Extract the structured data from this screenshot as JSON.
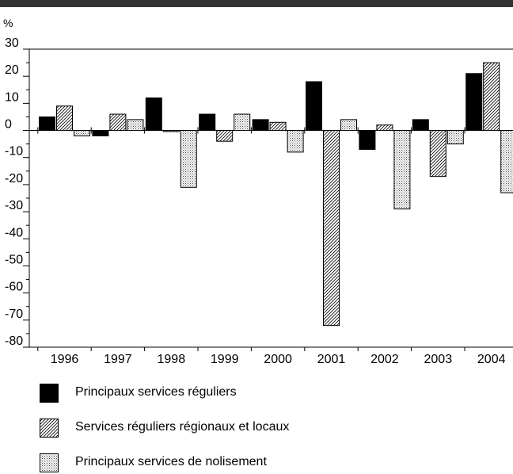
{
  "chart_data": {
    "type": "bar",
    "ylabel": "%",
    "ylim": [
      -80,
      30
    ],
    "yticks": [
      30,
      20,
      10,
      0,
      -10,
      -20,
      -30,
      -40,
      -50,
      -60,
      -70,
      -80
    ],
    "categories": [
      "1996",
      "1997",
      "1998",
      "1999",
      "2000",
      "2001",
      "2002",
      "2003",
      "2004"
    ],
    "series": [
      {
        "name": "Principaux services réguliers",
        "fill": "solid",
        "color": "#000000",
        "values": [
          5,
          -2,
          12,
          6,
          4,
          18,
          -7,
          4,
          21
        ]
      },
      {
        "name": "Services réguliers régionaux et locaux",
        "fill": "diagonal-hatch",
        "color": "#000000",
        "values": [
          9,
          6,
          0,
          -4,
          3,
          -72,
          2,
          -17,
          25
        ]
      },
      {
        "name": "Principaux services de nolisement",
        "fill": "dotted",
        "color": "#000000",
        "values": [
          -2,
          4,
          -21,
          6,
          -8,
          4,
          -29,
          -5,
          -23
        ]
      }
    ],
    "legend_position": "bottom-left",
    "grid": false
  }
}
